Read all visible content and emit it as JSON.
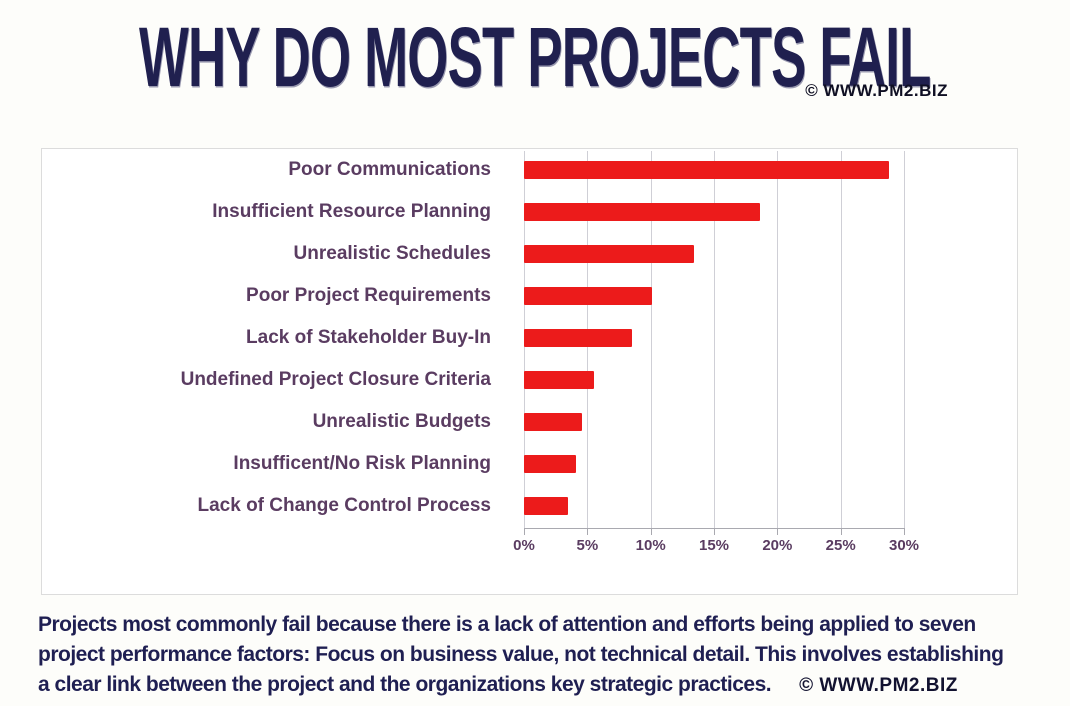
{
  "page": {
    "title": "WHY DO MOST PROJECTS FAIL",
    "copyright": "© WWW.PM2.BIZ"
  },
  "chart_data": {
    "type": "bar",
    "orientation": "horizontal",
    "title": "WHY DO MOST PROJECTS FAIL",
    "categories": [
      "Poor Communications",
      "Insufficient Resource Planning",
      "Unrealistic Schedules",
      "Poor Project Requirements",
      "Lack of Stakeholder Buy-In",
      "Undefined Project Closure Criteria",
      "Unrealistic Budgets",
      "Insufficent/No Risk Planning",
      "Lack of Change Control Process"
    ],
    "values": [
      28.8,
      18.6,
      13.4,
      10.1,
      8.5,
      5.5,
      4.6,
      4.1,
      3.5
    ],
    "unit": "%",
    "xlim": [
      0,
      30
    ],
    "x_ticks": [
      "0%",
      "5%",
      "10%",
      "15%",
      "20%",
      "25%",
      "30%"
    ],
    "grid": true,
    "legend": false,
    "bar_color": "#ec1b1b",
    "category_label_color": "#5a3c61",
    "tick_label_color": "#5a3c61"
  },
  "footer": {
    "line1": "Projects most commonly fail because there is a lack of attention and efforts being applied to seven",
    "line2": "project performance factors: Focus on business value, not technical detail. This involves establishing",
    "line3": "a clear link between the project and the organizations key strategic practices.",
    "copyright": "© WWW.PM2.BIZ"
  }
}
